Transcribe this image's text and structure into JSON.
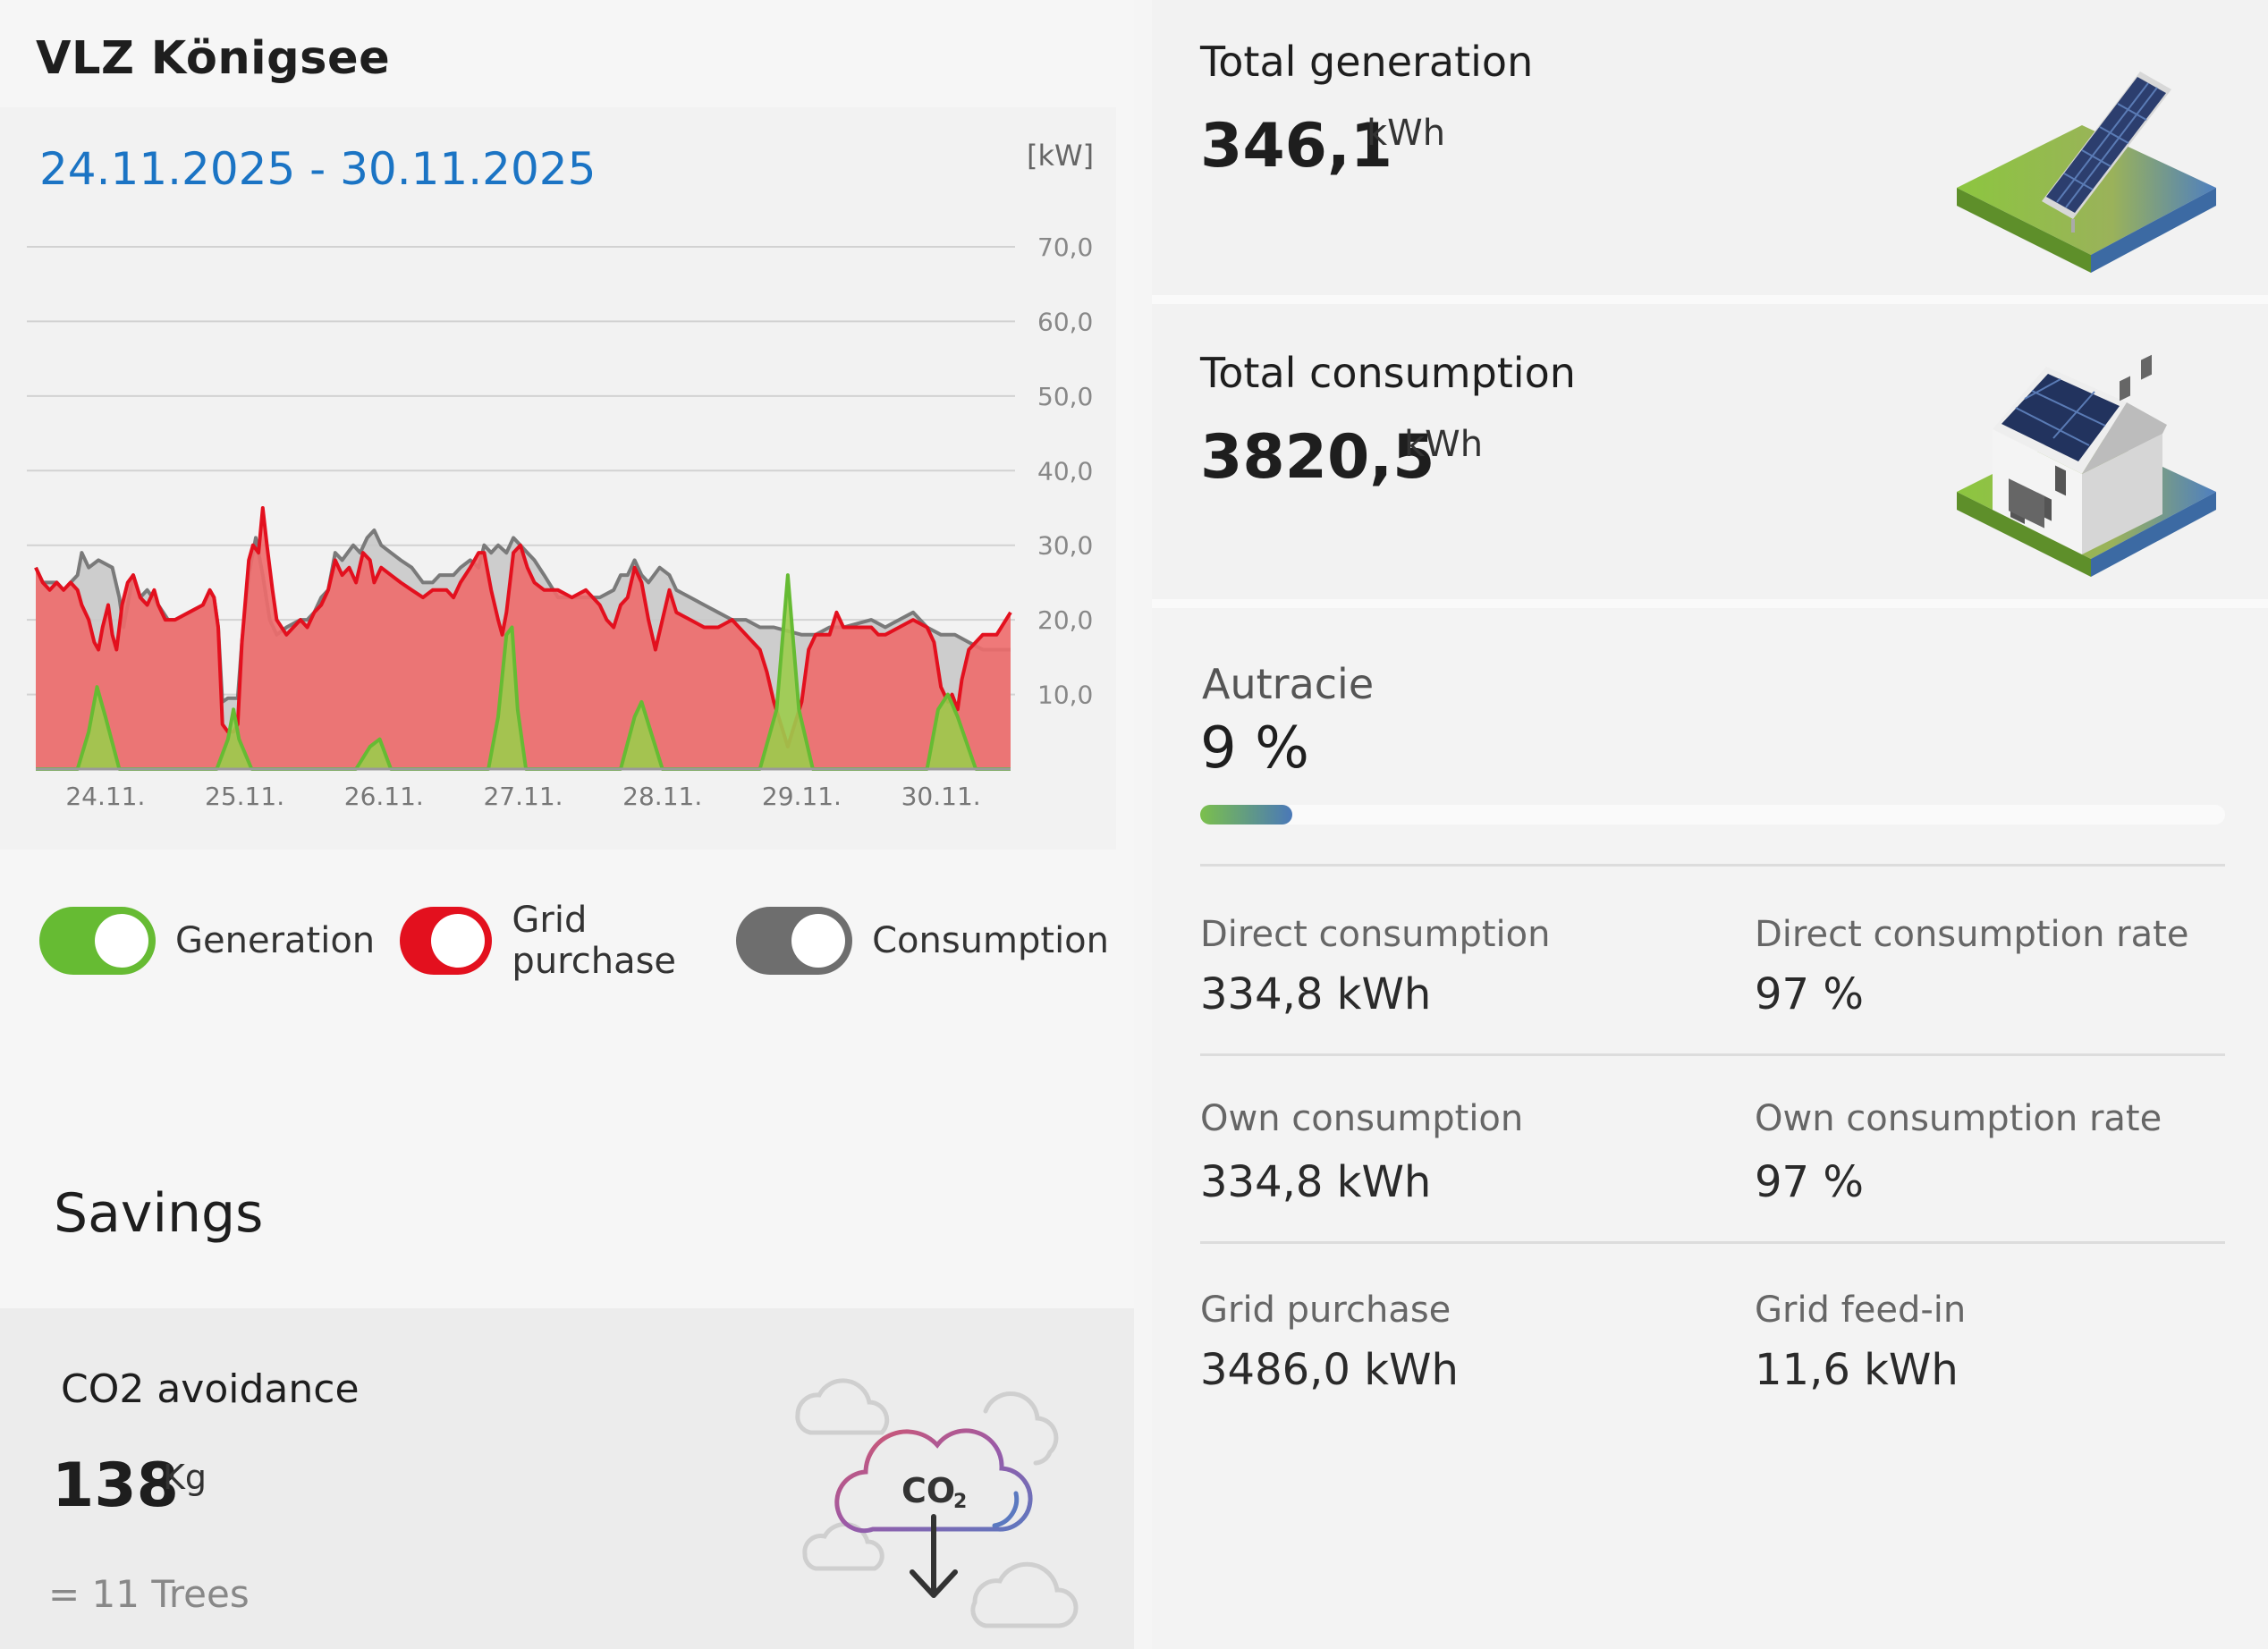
{
  "plant": {
    "name": "VLZ Königsee"
  },
  "chart_header": {
    "date_range": "24.11.2025 - 30.11.2025",
    "unit": "[kW]"
  },
  "legend": [
    {
      "label": "Generation",
      "color": "#66bb33",
      "enabled": true
    },
    {
      "label": "Grid purchase",
      "color": "#e3101e",
      "enabled": true
    },
    {
      "label": "Consumption",
      "color": "#6e6e6e",
      "enabled": true
    }
  ],
  "chart_data": {
    "type": "area",
    "title": "",
    "xlabel": "",
    "ylabel": "[kW]",
    "ylim": [
      0,
      70
    ],
    "yticks": [
      "70,0",
      "60,0",
      "50,0",
      "40,0",
      "30,0",
      "20,0",
      "10,0"
    ],
    "ytick_values": [
      70,
      60,
      50,
      40,
      30,
      20,
      10
    ],
    "xtick_labels": [
      "24.11.",
      "25.11.",
      "26.11.",
      "27.11.",
      "28.11.",
      "29.11.",
      "30.11."
    ],
    "xlim_days": [
      0,
      7
    ],
    "grid": true,
    "series": [
      {
        "name": "Consumption",
        "color": "#7a7a7a",
        "fill": "#c9c9c9",
        "points": [
          [
            0,
            27
          ],
          [
            0.05,
            25
          ],
          [
            0.15,
            25
          ],
          [
            0.2,
            24
          ],
          [
            0.3,
            26
          ],
          [
            0.33,
            29
          ],
          [
            0.38,
            27
          ],
          [
            0.45,
            28
          ],
          [
            0.55,
            27
          ],
          [
            0.6,
            23
          ],
          [
            0.63,
            19
          ],
          [
            0.7,
            26
          ],
          [
            0.75,
            23
          ],
          [
            0.8,
            24
          ],
          [
            0.88,
            22
          ],
          [
            0.95,
            20
          ],
          [
            1.0,
            20
          ],
          [
            1.1,
            21
          ],
          [
            1.2,
            22
          ],
          [
            1.25,
            24
          ],
          [
            1.28,
            23
          ],
          [
            1.31,
            19
          ],
          [
            1.34,
            9
          ],
          [
            1.38,
            9.5
          ],
          [
            1.45,
            9.5
          ],
          [
            1.48,
            17
          ],
          [
            1.53,
            26
          ],
          [
            1.58,
            31
          ],
          [
            1.63,
            26
          ],
          [
            1.68,
            20
          ],
          [
            1.73,
            18
          ],
          [
            1.8,
            19
          ],
          [
            1.9,
            20
          ],
          [
            1.95,
            20
          ],
          [
            2.0,
            21
          ],
          [
            2.05,
            23
          ],
          [
            2.1,
            24
          ],
          [
            2.15,
            29
          ],
          [
            2.2,
            28
          ],
          [
            2.28,
            30
          ],
          [
            2.33,
            29
          ],
          [
            2.38,
            31
          ],
          [
            2.43,
            32
          ],
          [
            2.48,
            30
          ],
          [
            2.55,
            29
          ],
          [
            2.62,
            28
          ],
          [
            2.7,
            27
          ],
          [
            2.78,
            25
          ],
          [
            2.85,
            25
          ],
          [
            2.9,
            26
          ],
          [
            2.95,
            26
          ],
          [
            3.0,
            26
          ],
          [
            3.05,
            27
          ],
          [
            3.12,
            28
          ],
          [
            3.18,
            27
          ],
          [
            3.22,
            30
          ],
          [
            3.27,
            29
          ],
          [
            3.32,
            30
          ],
          [
            3.38,
            29
          ],
          [
            3.43,
            31
          ],
          [
            3.48,
            30
          ],
          [
            3.53,
            29
          ],
          [
            3.58,
            28
          ],
          [
            3.65,
            26
          ],
          [
            3.75,
            23
          ],
          [
            3.85,
            23
          ],
          [
            3.95,
            23
          ],
          [
            4.05,
            23
          ],
          [
            4.15,
            24
          ],
          [
            4.2,
            26
          ],
          [
            4.25,
            26
          ],
          [
            4.3,
            28
          ],
          [
            4.35,
            26
          ],
          [
            4.4,
            25
          ],
          [
            4.48,
            27
          ],
          [
            4.55,
            26
          ],
          [
            4.6,
            24
          ],
          [
            4.7,
            23
          ],
          [
            4.8,
            22
          ],
          [
            4.9,
            21
          ],
          [
            5.0,
            20
          ],
          [
            5.1,
            20
          ],
          [
            5.2,
            19
          ],
          [
            5.3,
            19
          ],
          [
            5.4,
            18.5
          ],
          [
            5.5,
            18
          ],
          [
            5.6,
            18
          ],
          [
            5.7,
            19
          ],
          [
            5.8,
            19
          ],
          [
            5.9,
            19.5
          ],
          [
            6.0,
            20
          ],
          [
            6.05,
            19.5
          ],
          [
            6.1,
            19
          ],
          [
            6.15,
            19.5
          ],
          [
            6.2,
            20
          ],
          [
            6.3,
            21
          ],
          [
            6.4,
            19
          ],
          [
            6.5,
            18
          ],
          [
            6.6,
            18
          ],
          [
            6.7,
            17
          ],
          [
            6.8,
            16
          ],
          [
            6.9,
            16
          ],
          [
            7.0,
            16
          ]
        ]
      },
      {
        "name": "Grid purchase",
        "color": "#e3101e",
        "fill": "#ee6b6b",
        "points": [
          [
            0,
            27
          ],
          [
            0.05,
            25
          ],
          [
            0.1,
            24
          ],
          [
            0.15,
            25
          ],
          [
            0.2,
            24
          ],
          [
            0.25,
            25
          ],
          [
            0.3,
            24
          ],
          [
            0.33,
            22
          ],
          [
            0.38,
            20
          ],
          [
            0.42,
            17
          ],
          [
            0.45,
            16
          ],
          [
            0.48,
            19
          ],
          [
            0.52,
            22
          ],
          [
            0.55,
            18
          ],
          [
            0.58,
            16
          ],
          [
            0.62,
            22
          ],
          [
            0.66,
            25
          ],
          [
            0.7,
            26
          ],
          [
            0.75,
            23
          ],
          [
            0.8,
            22
          ],
          [
            0.85,
            24
          ],
          [
            0.88,
            22
          ],
          [
            0.93,
            20
          ],
          [
            1.0,
            20
          ],
          [
            1.1,
            21
          ],
          [
            1.2,
            22
          ],
          [
            1.25,
            24
          ],
          [
            1.28,
            23
          ],
          [
            1.31,
            19
          ],
          [
            1.34,
            6
          ],
          [
            1.38,
            5
          ],
          [
            1.42,
            5
          ],
          [
            1.45,
            6
          ],
          [
            1.48,
            17
          ],
          [
            1.53,
            28
          ],
          [
            1.56,
            30
          ],
          [
            1.6,
            29
          ],
          [
            1.63,
            35
          ],
          [
            1.66,
            30
          ],
          [
            1.7,
            24
          ],
          [
            1.73,
            20
          ],
          [
            1.8,
            18
          ],
          [
            1.9,
            20
          ],
          [
            1.95,
            19
          ],
          [
            2.0,
            21
          ],
          [
            2.05,
            22
          ],
          [
            2.1,
            24
          ],
          [
            2.15,
            28
          ],
          [
            2.2,
            26
          ],
          [
            2.25,
            27
          ],
          [
            2.3,
            25
          ],
          [
            2.35,
            29
          ],
          [
            2.4,
            28
          ],
          [
            2.43,
            25
          ],
          [
            2.48,
            27
          ],
          [
            2.55,
            26
          ],
          [
            2.62,
            25
          ],
          [
            2.7,
            24
          ],
          [
            2.78,
            23
          ],
          [
            2.85,
            24
          ],
          [
            2.9,
            24
          ],
          [
            2.95,
            24
          ],
          [
            3.0,
            23
          ],
          [
            3.05,
            25
          ],
          [
            3.12,
            27
          ],
          [
            3.18,
            29
          ],
          [
            3.22,
            29
          ],
          [
            3.27,
            24
          ],
          [
            3.32,
            20
          ],
          [
            3.35,
            18
          ],
          [
            3.38,
            21
          ],
          [
            3.43,
            29
          ],
          [
            3.48,
            30
          ],
          [
            3.53,
            27
          ],
          [
            3.58,
            25
          ],
          [
            3.65,
            24
          ],
          [
            3.75,
            24
          ],
          [
            3.85,
            23
          ],
          [
            3.95,
            24
          ],
          [
            4.05,
            22
          ],
          [
            4.1,
            20
          ],
          [
            4.15,
            19
          ],
          [
            4.2,
            22
          ],
          [
            4.25,
            23
          ],
          [
            4.3,
            27
          ],
          [
            4.35,
            25
          ],
          [
            4.4,
            20
          ],
          [
            4.45,
            16
          ],
          [
            4.5,
            20
          ],
          [
            4.55,
            24
          ],
          [
            4.6,
            21
          ],
          [
            4.7,
            20
          ],
          [
            4.8,
            19
          ],
          [
            4.9,
            19
          ],
          [
            5.0,
            20
          ],
          [
            5.1,
            18
          ],
          [
            5.2,
            16
          ],
          [
            5.25,
            13
          ],
          [
            5.3,
            9
          ],
          [
            5.35,
            6
          ],
          [
            5.4,
            3
          ],
          [
            5.45,
            6
          ],
          [
            5.5,
            9
          ],
          [
            5.55,
            16
          ],
          [
            5.6,
            18
          ],
          [
            5.7,
            18
          ],
          [
            5.75,
            21
          ],
          [
            5.8,
            19
          ],
          [
            5.9,
            19
          ],
          [
            6.0,
            19
          ],
          [
            6.05,
            18
          ],
          [
            6.1,
            18
          ],
          [
            6.2,
            19
          ],
          [
            6.3,
            20
          ],
          [
            6.4,
            19
          ],
          [
            6.45,
            17
          ],
          [
            6.5,
            11
          ],
          [
            6.55,
            9
          ],
          [
            6.58,
            10
          ],
          [
            6.62,
            8
          ],
          [
            6.65,
            12
          ],
          [
            6.7,
            16
          ],
          [
            6.8,
            18
          ],
          [
            6.9,
            18
          ],
          [
            7.0,
            21
          ]
        ]
      },
      {
        "name": "Generation",
        "color": "#66bb33",
        "fill": "#9ccc4c",
        "points": [
          [
            0,
            0
          ],
          [
            0.3,
            0
          ],
          [
            0.38,
            5
          ],
          [
            0.44,
            11
          ],
          [
            0.5,
            7
          ],
          [
            0.6,
            0
          ],
          [
            1.3,
            0
          ],
          [
            1.38,
            4
          ],
          [
            1.42,
            8
          ],
          [
            1.46,
            4
          ],
          [
            1.55,
            0
          ],
          [
            2.3,
            0
          ],
          [
            2.4,
            3
          ],
          [
            2.47,
            4
          ],
          [
            2.55,
            0
          ],
          [
            3.25,
            0
          ],
          [
            3.32,
            7
          ],
          [
            3.38,
            18
          ],
          [
            3.42,
            19
          ],
          [
            3.46,
            8
          ],
          [
            3.52,
            0
          ],
          [
            4.2,
            0
          ],
          [
            4.3,
            7
          ],
          [
            4.35,
            9
          ],
          [
            4.4,
            6
          ],
          [
            4.5,
            0
          ],
          [
            5.2,
            0
          ],
          [
            5.32,
            8
          ],
          [
            5.4,
            26
          ],
          [
            5.48,
            8
          ],
          [
            5.58,
            0
          ],
          [
            6.4,
            0
          ],
          [
            6.48,
            8
          ],
          [
            6.55,
            10
          ],
          [
            6.62,
            7
          ],
          [
            6.75,
            0
          ],
          [
            7.0,
            0
          ]
        ]
      }
    ]
  },
  "savings": {
    "title": "Savings",
    "co2": {
      "title": "CO2 avoidance",
      "value": "138",
      "unit": "Kg",
      "trees": "= 11 Trees",
      "cloud_label": "CO",
      "cloud_sub": "2"
    }
  },
  "kpis": {
    "generation": {
      "title": "Total generation",
      "value": "346,1",
      "unit": "kWh"
    },
    "consumption": {
      "title": "Total consumption",
      "value": "3820,5",
      "unit": "kWh"
    }
  },
  "autarky": {
    "label": "Autracie",
    "value": "9 %",
    "fraction": 0.09
  },
  "stats": [
    [
      {
        "label": "Direct consumption",
        "value": "334,8 kWh"
      },
      {
        "label": "Direct consumption rate",
        "value": "97 %"
      }
    ],
    [
      {
        "label": "Own consumption",
        "value": "334,8 kWh"
      },
      {
        "label": "Own consumption rate",
        "value": "97 %"
      }
    ],
    [
      {
        "label": "Grid purchase",
        "value": "3486,0 kWh"
      },
      {
        "label": "Grid feed-in",
        "value": "11,6 kWh"
      }
    ]
  ]
}
